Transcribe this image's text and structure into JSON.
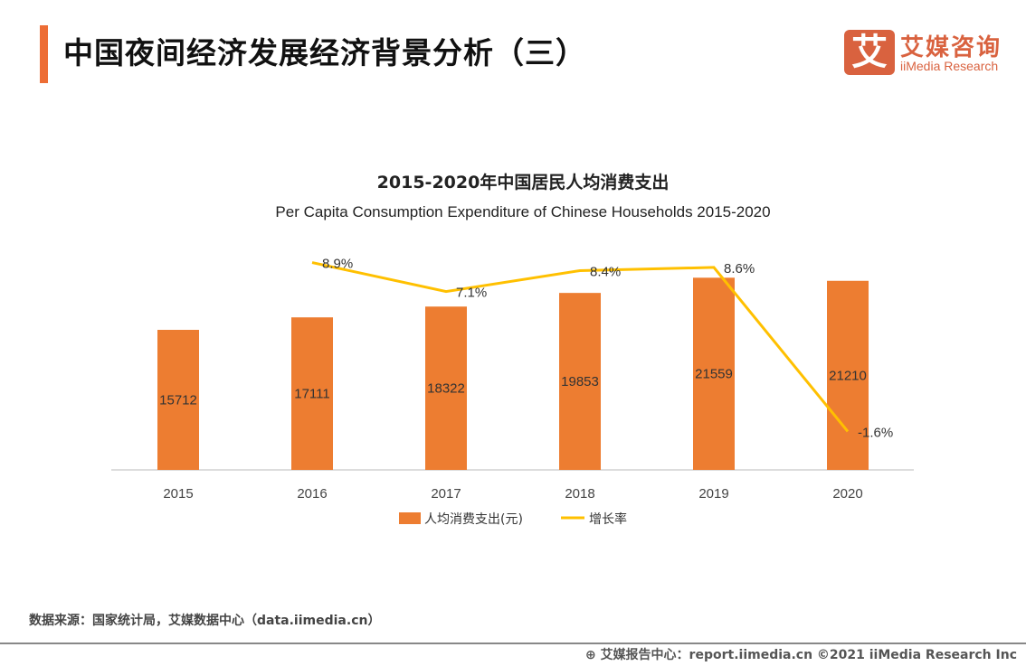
{
  "header": {
    "title": "中国夜间经济发展经济背景分析（三）",
    "logo_mark": "艾",
    "logo_cn": "艾媒咨询",
    "logo_en": "iiMedia Research"
  },
  "chart_data": {
    "type": "bar+line",
    "title": "2015-2020年中国居民人均消费支出",
    "subtitle": "Per Capita Consumption Expenditure of Chinese Households 2015-2020",
    "categories": [
      "2015",
      "2016",
      "2017",
      "2018",
      "2019",
      "2020"
    ],
    "series": [
      {
        "name": "人均消费支出(元)",
        "type": "bar",
        "color": "#ed7d31",
        "values": [
          15712,
          17111,
          18322,
          19853,
          21559,
          21210
        ],
        "labels": [
          "15712",
          "17111",
          "18322",
          "19853",
          "21559",
          "21210"
        ]
      },
      {
        "name": "增长率",
        "type": "line",
        "color": "#ffc000",
        "unit": "%",
        "values": [
          null,
          8.9,
          7.1,
          8.4,
          8.6,
          -1.6
        ],
        "labels": [
          "",
          "8.9%",
          "7.1%",
          "8.4%",
          "8.6%",
          "-1.6%"
        ]
      }
    ],
    "legend": "bottom",
    "grid": false
  },
  "footer": {
    "source": "数据来源：国家统计局，艾媒数据中心（data.iimedia.cn）",
    "copyright": "艾媒报告中心：report.iimedia.cn   ©2021  iiMedia Research  Inc"
  }
}
